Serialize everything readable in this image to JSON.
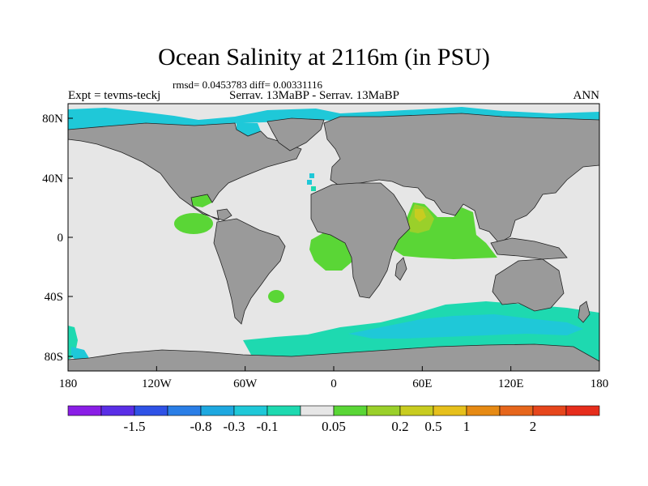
{
  "title": "Ocean Salinity at 2116m (in PSU)",
  "stats_line": "rmsd= 0.0453783 diff= 0.00331116",
  "experiment": "Expt = tevms-teckj",
  "cases": "Serrav.  13MaBP - Serrav.  13MaBP",
  "season": "ANN",
  "axes": {
    "lat_labels": [
      "80N",
      "40N",
      "0",
      "40S",
      "80S"
    ],
    "lon_labels": [
      "180",
      "120W",
      "60W",
      "0",
      "60E",
      "120E",
      "180"
    ]
  },
  "colors": {
    "land": "#9a9a9a",
    "near_zero": "#e6e6e6",
    "cyan_neg": "#1fc8d8",
    "teal_neg": "#1ed9b0",
    "green_pos": "#5ad636",
    "lime_pos": "#9ad02a",
    "olive_pos": "#c8cc20"
  },
  "colorbar": {
    "colors": [
      "#8a1ee6",
      "#5a2ee6",
      "#2f52e6",
      "#2a7ee6",
      "#1ea8e0",
      "#1fc8d8",
      "#1ed9b0",
      "#e6e6e6",
      "#5ad636",
      "#9ad02a",
      "#c8cc20",
      "#e6c01c",
      "#e68a14",
      "#e6661c",
      "#e6461c",
      "#e62d1c"
    ],
    "labels": [
      "-1.5",
      "-0.8",
      "-0.3",
      "-0.1",
      "0.05",
      "0.2",
      "0.5",
      "1",
      "2"
    ]
  }
}
